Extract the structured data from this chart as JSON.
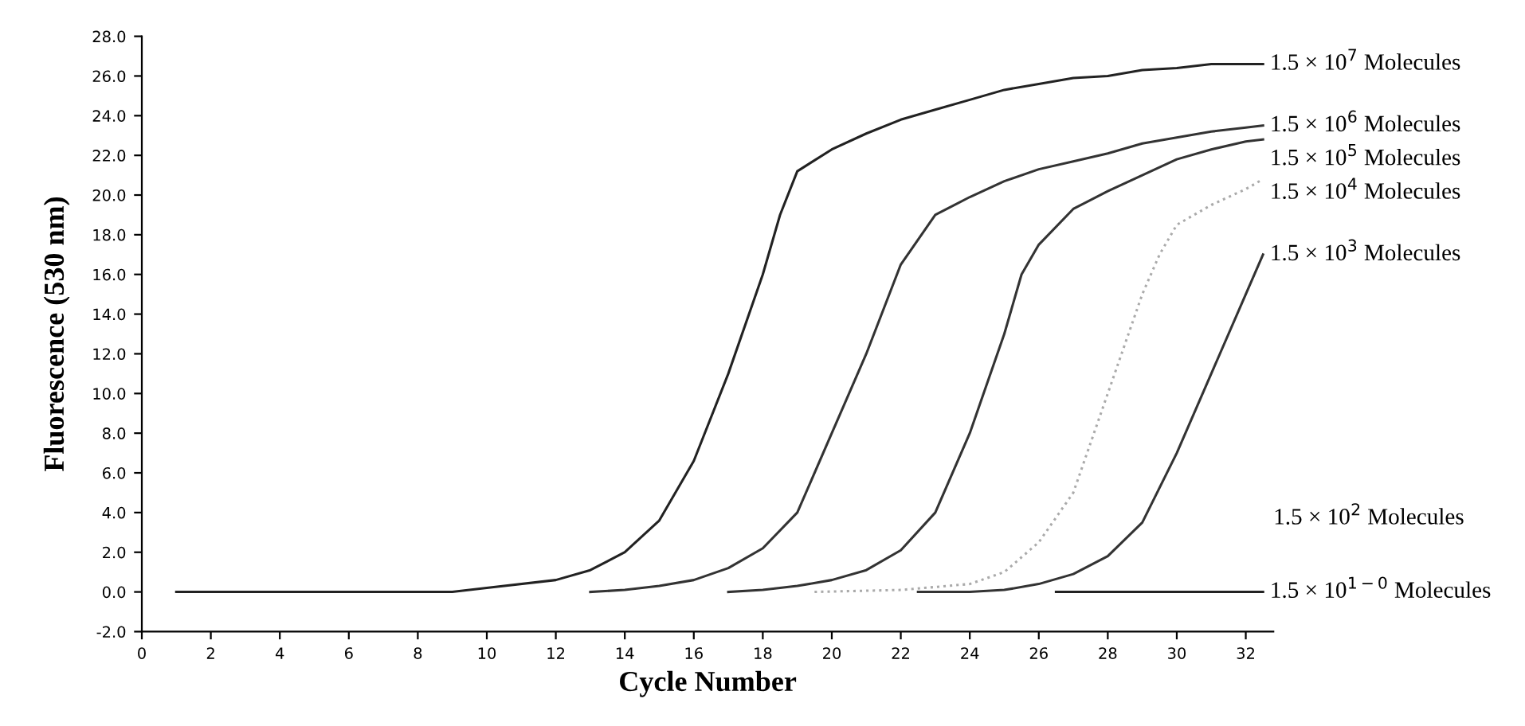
{
  "chart_data": {
    "type": "line",
    "xlabel": "Cycle Number",
    "ylabel": "Fluorescence (530 nm)",
    "xlim": [
      0,
      32.8
    ],
    "ylim": [
      -2,
      28
    ],
    "xticks": [
      0,
      2,
      4,
      6,
      8,
      10,
      12,
      14,
      16,
      18,
      20,
      22,
      24,
      26,
      28,
      30,
      32
    ],
    "yticks": [
      {
        "value": -2,
        "label": "-2.0"
      },
      {
        "value": 0,
        "label": "0.0"
      },
      {
        "value": 2,
        "label": "2.0"
      },
      {
        "value": 4,
        "label": "4.0"
      },
      {
        "value": 6,
        "label": "6.0"
      },
      {
        "value": 8,
        "label": "8.0"
      },
      {
        "value": 10,
        "label": "10.0"
      },
      {
        "value": 12,
        "label": "12.0"
      },
      {
        "value": 14,
        "label": "14.0"
      },
      {
        "value": 16,
        "label": "16.0"
      },
      {
        "value": 18,
        "label": "18.0"
      },
      {
        "value": 20,
        "label": "20.0"
      },
      {
        "value": 22,
        "label": "22.0"
      },
      {
        "value": 24,
        "label": "24.0"
      },
      {
        "value": 26,
        "label": "26.0"
      },
      {
        "value": 28,
        "label": "28.0"
      }
    ],
    "grid": false,
    "legend": false,
    "marker": "none",
    "series": [
      {
        "name": "1.5 × 10$^{7}$ Molecules",
        "color": "#222222",
        "line_style": "solid",
        "x": [
          1,
          9,
          10,
          12,
          13,
          14,
          15,
          16,
          17,
          18,
          18.5,
          19,
          20,
          21,
          22,
          23,
          24,
          25,
          26,
          27,
          28,
          29,
          30,
          31,
          32,
          32.5
        ],
        "values": [
          0,
          0,
          0.2,
          0.6,
          1.1,
          2.0,
          3.6,
          6.6,
          11,
          16,
          19,
          21.2,
          22.3,
          23.1,
          23.8,
          24.3,
          24.8,
          25.3,
          25.6,
          25.9,
          26.0,
          26.3,
          26.4,
          26.6,
          26.6,
          26.6
        ]
      },
      {
        "name": "1.5 × 10$^{6}$ Molecules",
        "color": "#333333",
        "line_style": "solid",
        "x": [
          13,
          14,
          15,
          16,
          17,
          18,
          19,
          20,
          21,
          22,
          23,
          24,
          25,
          26,
          27,
          28,
          29,
          30,
          31,
          32,
          32.5
        ],
        "values": [
          0,
          0.1,
          0.3,
          0.6,
          1.2,
          2.2,
          4,
          8,
          12,
          16.5,
          19,
          19.9,
          20.7,
          21.3,
          21.7,
          22.1,
          22.6,
          22.9,
          23.2,
          23.4,
          23.5
        ]
      },
      {
        "name": "1.5 × 10$^{5}$ Molecules",
        "color": "#333333",
        "line_style": "solid",
        "x": [
          17,
          18,
          19,
          20,
          21,
          22,
          23,
          24,
          25,
          25.5,
          26,
          27,
          28,
          29,
          30,
          31,
          32,
          32.5
        ],
        "values": [
          0,
          0.1,
          0.3,
          0.6,
          1.1,
          2.1,
          4,
          8,
          13,
          16,
          17.5,
          19.3,
          20.2,
          21,
          21.8,
          22.3,
          22.7,
          22.8
        ]
      },
      {
        "name": "1.5 × 10$^{4}$ Molecules",
        "color": "#aaaaaa",
        "line_style": "dotted",
        "x": [
          19.5,
          22,
          24,
          25,
          26,
          27,
          28,
          29,
          29.5,
          30,
          31,
          32,
          32.5
        ],
        "values": [
          0,
          0.1,
          0.4,
          1,
          2.5,
          5,
          10,
          15,
          17,
          18.5,
          19.5,
          20.3,
          20.8
        ]
      },
      {
        "name": "1.5 × 10$^{3}$ Molecules",
        "color": "#333333",
        "line_style": "solid",
        "x": [
          22.5,
          24,
          25,
          26,
          27,
          28,
          29,
          30,
          31,
          32,
          32.5
        ],
        "values": [
          0,
          0,
          0.1,
          0.4,
          0.9,
          1.8,
          3.5,
          7,
          11,
          15,
          17
        ]
      },
      {
        "name": "1.5 × 10$^{1−0}$ Molecules",
        "color": "#222222",
        "line_style": "solid",
        "x": [
          26.5,
          32.5
        ],
        "values": [
          0,
          0
        ]
      }
    ],
    "annotations": [
      "1.5 × 10$^{2}$ Molecules"
    ]
  }
}
